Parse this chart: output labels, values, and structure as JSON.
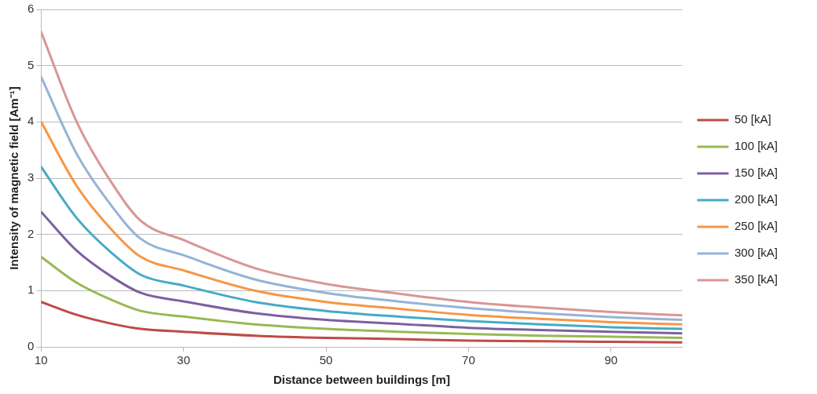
{
  "chart_data": {
    "type": "line",
    "xlabel": "Distance between buildings [m]",
    "ylabel": "Intensity of magnetic field [Am⁻¹]",
    "x": [
      10,
      15,
      20,
      24,
      30,
      40,
      50,
      60,
      70,
      80,
      90,
      100
    ],
    "xlim": [
      10,
      100
    ],
    "xticks": [
      10,
      30,
      50,
      70,
      90
    ],
    "ylim": [
      0,
      6
    ],
    "yticks": [
      0,
      1,
      2,
      3,
      4,
      5,
      6
    ],
    "grid": "y",
    "legend": "right",
    "marker": "none",
    "line_style": "solid",
    "series": [
      {
        "name": "50 [kA]",
        "color": "#be4b48",
        "values": [
          0.8,
          0.57,
          0.41,
          0.32,
          0.27,
          0.2,
          0.16,
          0.14,
          0.11,
          0.1,
          0.09,
          0.08
        ]
      },
      {
        "name": "100 [kA]",
        "color": "#98b954",
        "values": [
          1.6,
          1.14,
          0.83,
          0.64,
          0.54,
          0.4,
          0.32,
          0.27,
          0.23,
          0.2,
          0.18,
          0.16
        ]
      },
      {
        "name": "150 [kA]",
        "color": "#7d60a0",
        "values": [
          2.4,
          1.71,
          1.24,
          0.96,
          0.81,
          0.6,
          0.48,
          0.41,
          0.34,
          0.3,
          0.27,
          0.24
        ]
      },
      {
        "name": "200 [kA]",
        "color": "#46aac5",
        "values": [
          3.2,
          2.29,
          1.66,
          1.28,
          1.09,
          0.8,
          0.64,
          0.54,
          0.46,
          0.4,
          0.35,
          0.32
        ]
      },
      {
        "name": "250 [kA]",
        "color": "#f79646",
        "values": [
          4.0,
          2.86,
          2.07,
          1.6,
          1.36,
          1.0,
          0.8,
          0.68,
          0.57,
          0.5,
          0.44,
          0.4
        ]
      },
      {
        "name": "300 [kA]",
        "color": "#95b3d7",
        "values": [
          4.8,
          3.43,
          2.49,
          1.92,
          1.63,
          1.2,
          0.96,
          0.81,
          0.69,
          0.6,
          0.53,
          0.48
        ]
      },
      {
        "name": "350 [kA]",
        "color": "#d99694",
        "values": [
          5.6,
          4.0,
          2.9,
          2.24,
          1.9,
          1.4,
          1.12,
          0.95,
          0.8,
          0.7,
          0.62,
          0.56
        ]
      }
    ]
  }
}
